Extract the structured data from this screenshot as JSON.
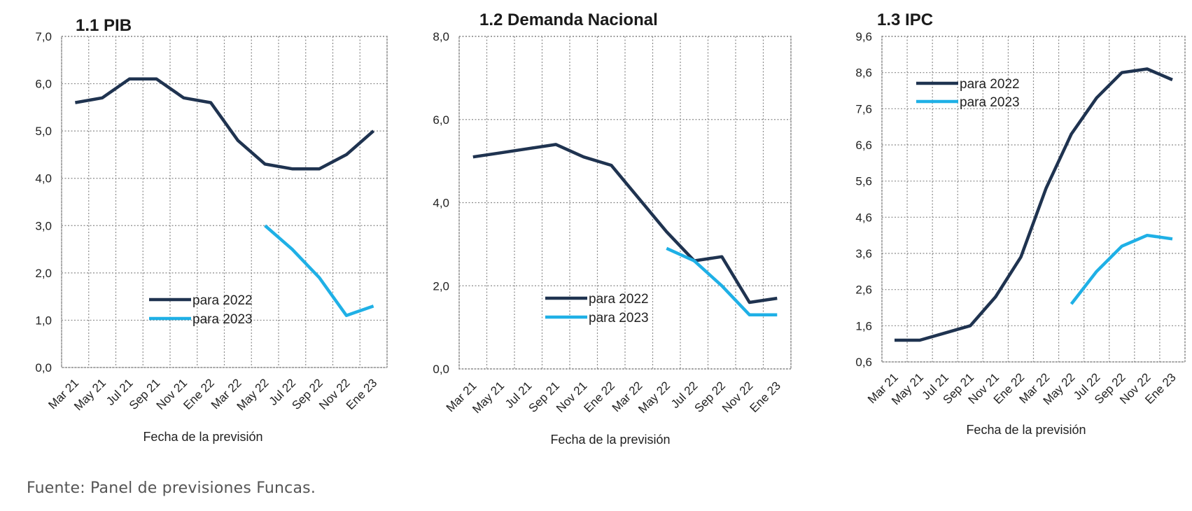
{
  "source_note": "Fuente: Panel de previsiones Funcas.",
  "chart_data": [
    {
      "type": "line",
      "title": "1.1 PIB",
      "xlabel": "Fecha de la previsión",
      "ylabel": "",
      "categories": [
        "Mar 21",
        "May 21",
        "Jul 21",
        "Sep 21",
        "Nov 21",
        "Ene 22",
        "Mar 22",
        "May 22",
        "Jul 22",
        "Sep 22",
        "Nov 22",
        "Ene 23"
      ],
      "ylim": [
        0,
        7
      ],
      "yticks": [
        "0,0",
        "1,0",
        "2,0",
        "3,0",
        "4,0",
        "5,0",
        "6,0",
        "7,0"
      ],
      "legend_position": "bottom-center",
      "series": [
        {
          "name": "para 2022",
          "color": "#1f3350",
          "values": [
            5.6,
            5.7,
            6.1,
            6.1,
            5.7,
            5.6,
            4.8,
            4.3,
            4.2,
            4.2,
            4.5,
            5.0
          ]
        },
        {
          "name": "para 2023",
          "color": "#1fb0e6",
          "values": [
            null,
            null,
            null,
            null,
            null,
            null,
            null,
            3.0,
            2.5,
            1.9,
            1.1,
            1.3
          ]
        }
      ]
    },
    {
      "type": "line",
      "title": "1.2 Demanda Nacional",
      "xlabel": "Fecha de la previsión",
      "ylabel": "",
      "categories": [
        "Mar 21",
        "May 21",
        "Jul 21",
        "Sep 21",
        "Nov 21",
        "Ene 22",
        "Mar 22",
        "May 22",
        "Jul 22",
        "Sep 22",
        "Nov 22",
        "Ene 23"
      ],
      "ylim": [
        0,
        8
      ],
      "yticks": [
        "0,0",
        "2,0",
        "4,0",
        "6,0",
        "8,0"
      ],
      "legend_position": "bottom-center",
      "series": [
        {
          "name": "para 2022",
          "color": "#1f3350",
          "values": [
            5.1,
            5.2,
            5.3,
            5.4,
            5.1,
            4.9,
            4.1,
            3.3,
            2.6,
            2.7,
            1.6,
            1.7
          ]
        },
        {
          "name": "para 2023",
          "color": "#1fb0e6",
          "values": [
            null,
            null,
            null,
            null,
            null,
            null,
            null,
            2.9,
            2.6,
            2.0,
            1.3,
            1.3
          ]
        }
      ]
    },
    {
      "type": "line",
      "title": "1.3 IPC",
      "xlabel": "Fecha de la previsión",
      "ylabel": "",
      "categories": [
        "Mar 21",
        "May 21",
        "Jul 21",
        "Sep 21",
        "Nov 21",
        "Ene 22",
        "Mar 22",
        "May 22",
        "Jul 22",
        "Sep 22",
        "Nov 22",
        "Ene 23"
      ],
      "ylim": [
        0.6,
        9.6
      ],
      "yticks": [
        "0,6",
        "1,6",
        "2,6",
        "3,6",
        "4,6",
        "5,6",
        "6,6",
        "7,6",
        "8,6",
        "9,6"
      ],
      "legend_position": "top-center",
      "series": [
        {
          "name": "para 2022",
          "color": "#1f3350",
          "values": [
            1.2,
            1.2,
            1.4,
            1.6,
            2.4,
            3.5,
            5.4,
            6.9,
            7.9,
            8.6,
            8.7,
            8.4
          ]
        },
        {
          "name": "para 2023",
          "color": "#1fb0e6",
          "values": [
            null,
            null,
            null,
            null,
            null,
            null,
            null,
            2.2,
            3.1,
            3.8,
            4.1,
            4.0
          ]
        }
      ]
    }
  ]
}
